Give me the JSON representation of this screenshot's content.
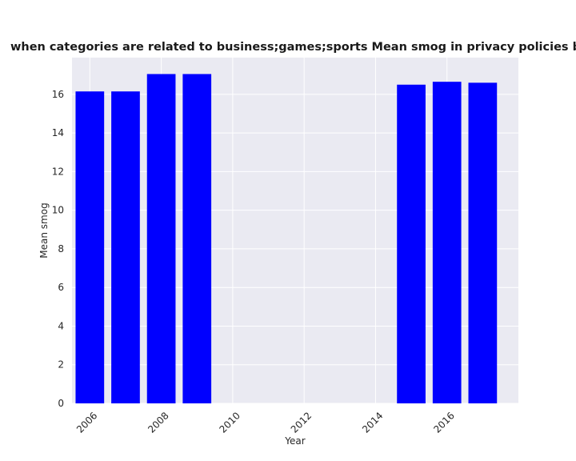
{
  "chart_data": {
    "type": "bar",
    "title": "when categories are related to business;games;sports Mean smog in privacy policies by Year",
    "xlabel": "Year",
    "ylabel": "Mean smog",
    "x": [
      2006,
      2007,
      2008,
      2009,
      2015,
      2016,
      2017
    ],
    "values": [
      16.15,
      16.15,
      17.05,
      17.05,
      16.5,
      16.65,
      16.6
    ],
    "xlim": [
      2005.5,
      2018.0
    ],
    "ylim": [
      0,
      17.9
    ],
    "xticks": [
      2006,
      2008,
      2010,
      2012,
      2014,
      2016
    ],
    "yticks": [
      0,
      2,
      4,
      6,
      8,
      10,
      12,
      14,
      16
    ],
    "bar_color": "#0000ff",
    "background_color": "#eaeaf2",
    "grid": true
  }
}
